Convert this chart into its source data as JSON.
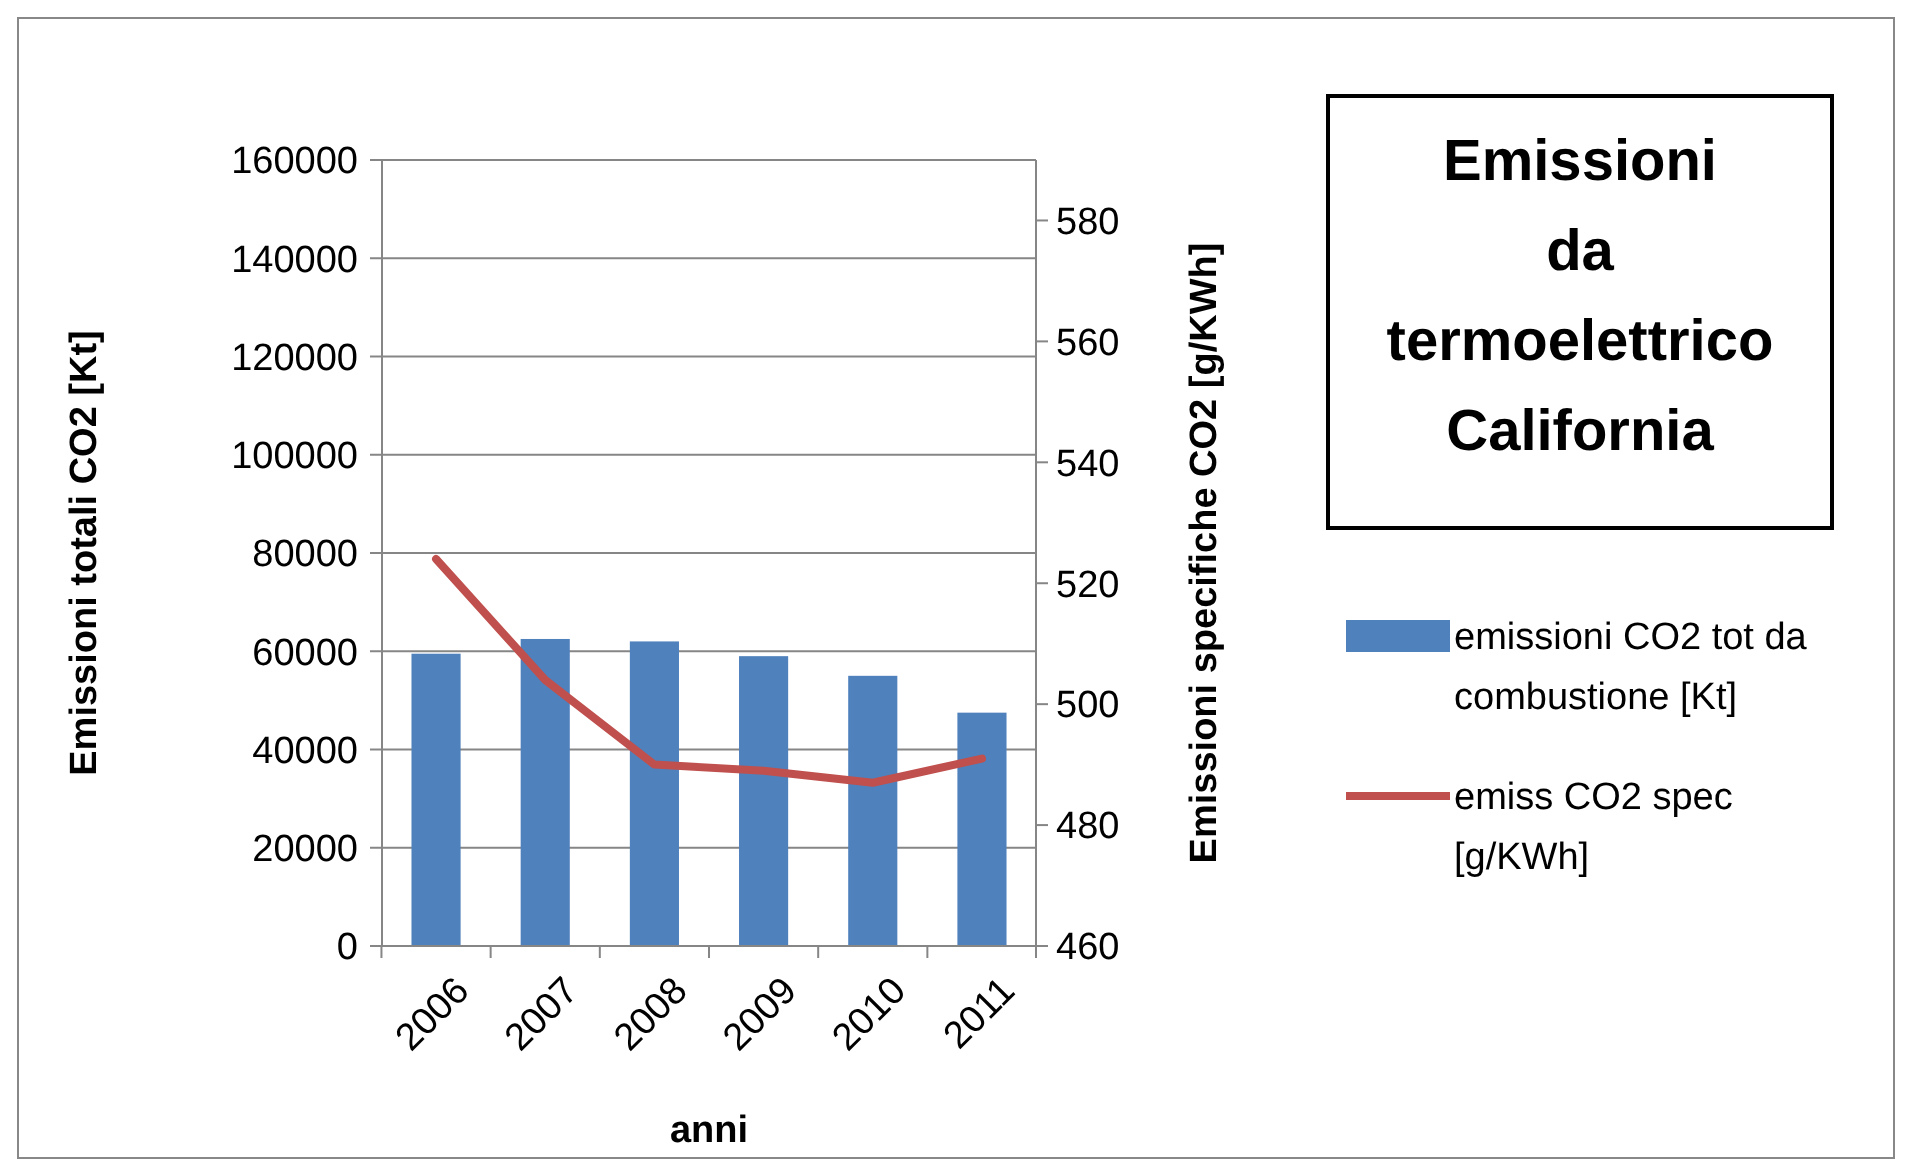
{
  "chart_data": {
    "type": "bar",
    "title": "Emissioni da termoelettrico California",
    "xlabel": "anni",
    "ylabel": "Emissioni totali CO2 [Kt]",
    "y2label": "Emissioni specifiche CO2 [g/KWh]",
    "categories": [
      "2006",
      "2007",
      "2008",
      "2009",
      "2010",
      "2011"
    ],
    "series": [
      {
        "name": "emissioni CO2 tot da combustione [Kt]",
        "color": "#4f81bd",
        "values": [
          59500,
          62500,
          62000,
          59000,
          55000,
          47500
        ]
      },
      {
        "name": "emiss CO2 spec [g/KWh]",
        "type": "line",
        "axis": "y2",
        "color": "#c0504d",
        "values": [
          524,
          504,
          490,
          489,
          487,
          491
        ]
      }
    ],
    "ylim": [
      0,
      160000
    ],
    "yticks": [
      0,
      20000,
      40000,
      60000,
      80000,
      100000,
      120000,
      140000,
      160000
    ],
    "y2lim": [
      460,
      590
    ],
    "y2ticks": [
      460,
      480,
      500,
      520,
      540,
      560,
      580
    ],
    "grid": "y",
    "legend": "right"
  }
}
